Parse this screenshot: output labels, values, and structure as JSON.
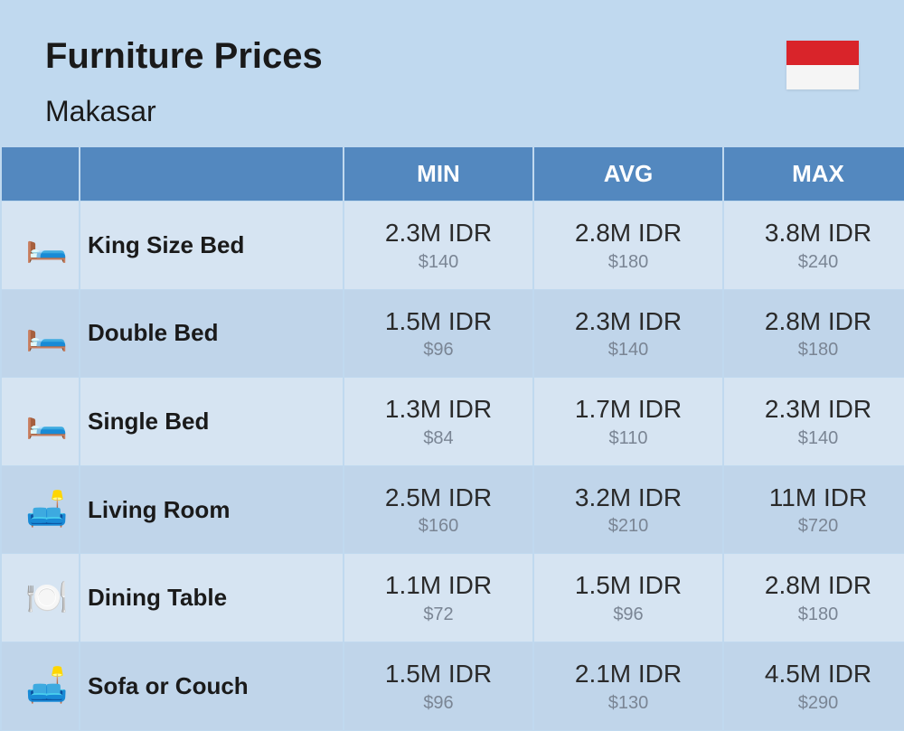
{
  "header": {
    "title": "Furniture Prices",
    "subtitle": "Makasar"
  },
  "flag": {
    "top_color": "#d9242a",
    "bottom_color": "#f5f5f5"
  },
  "columns": {
    "min": "MIN",
    "avg": "AVG",
    "max": "MAX"
  },
  "rows": [
    {
      "icon": "🛏️",
      "name": "King Size Bed",
      "min_idr": "2.3M IDR",
      "min_usd": "$140",
      "avg_idr": "2.8M IDR",
      "avg_usd": "$180",
      "max_idr": "3.8M IDR",
      "max_usd": "$240"
    },
    {
      "icon": "🛏️",
      "name": "Double Bed",
      "min_idr": "1.5M IDR",
      "min_usd": "$96",
      "avg_idr": "2.3M IDR",
      "avg_usd": "$140",
      "max_idr": "2.8M IDR",
      "max_usd": "$180"
    },
    {
      "icon": "🛏️",
      "name": "Single Bed",
      "min_idr": "1.3M IDR",
      "min_usd": "$84",
      "avg_idr": "1.7M IDR",
      "avg_usd": "$110",
      "max_idr": "2.3M IDR",
      "max_usd": "$140"
    },
    {
      "icon": "🛋️",
      "name": "Living Room",
      "min_idr": "2.5M IDR",
      "min_usd": "$160",
      "avg_idr": "3.2M IDR",
      "avg_usd": "$210",
      "max_idr": "11M IDR",
      "max_usd": "$720"
    },
    {
      "icon": "🍽️",
      "name": "Dining Table",
      "min_idr": "1.1M IDR",
      "min_usd": "$72",
      "avg_idr": "1.5M IDR",
      "avg_usd": "$96",
      "max_idr": "2.8M IDR",
      "max_usd": "$180"
    },
    {
      "icon": "🛋️",
      "name": "Sofa or Couch",
      "min_idr": "1.5M IDR",
      "min_usd": "$96",
      "avg_idr": "2.1M IDR",
      "avg_usd": "$130",
      "max_idr": "4.5M IDR",
      "max_usd": "$290"
    }
  ],
  "styling": {
    "page_bg": "#c0d9ef",
    "header_bg": "#5388bf",
    "header_text": "#ffffff",
    "row_even_bg": "#d6e4f2",
    "row_odd_bg": "#c0d5ea",
    "idr_color": "#2a2a2a",
    "usd_color": "#7a8594",
    "title_fontsize": 40,
    "subtitle_fontsize": 32,
    "th_fontsize": 26,
    "name_fontsize": 26,
    "idr_fontsize": 28,
    "usd_fontsize": 20
  }
}
